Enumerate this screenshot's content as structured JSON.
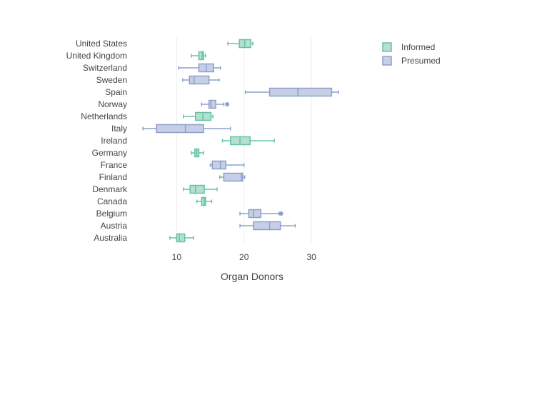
{
  "chart_data": {
    "type": "box",
    "orientation": "horizontal",
    "xlabel": "Organ Donors",
    "ylabel": "",
    "xlim": [
      3.5,
      39
    ],
    "x_ticks": [
      10,
      20,
      30
    ],
    "grid": "vertical",
    "legend_placement": "top-right",
    "categories": [
      "Australia",
      "Austria",
      "Belgium",
      "Canada",
      "Denmark",
      "Finland",
      "France",
      "Germany",
      "Ireland",
      "Italy",
      "Netherlands",
      "Norway",
      "Spain",
      "Sweden",
      "Switzerland",
      "United Kingdom",
      "United States"
    ],
    "series": [
      {
        "name": "Informed",
        "color": "#66c2a5",
        "fill": "#b3e0d2",
        "boxes": [
          {
            "category": "Australia",
            "lower_fence": 9.0,
            "q1": 10.0,
            "median": 10.4,
            "q3": 11.2,
            "upper_fence": 12.5,
            "outliers": []
          },
          {
            "category": "Canada",
            "lower_fence": 13.0,
            "q1": 13.7,
            "median": 14.1,
            "q3": 14.3,
            "upper_fence": 15.2,
            "outliers": []
          },
          {
            "category": "Denmark",
            "lower_fence": 11.0,
            "q1": 12.0,
            "median": 12.8,
            "q3": 14.1,
            "upper_fence": 16.0,
            "outliers": []
          },
          {
            "category": "Germany",
            "lower_fence": 12.2,
            "q1": 12.7,
            "median": 13.0,
            "q3": 13.3,
            "upper_fence": 14.0,
            "outliers": []
          },
          {
            "category": "Ireland",
            "lower_fence": 16.8,
            "q1": 18.0,
            "median": 19.4,
            "q3": 20.9,
            "upper_fence": 24.5,
            "outliers": []
          },
          {
            "category": "Netherlands",
            "lower_fence": 11.0,
            "q1": 12.8,
            "median": 13.9,
            "q3": 15.1,
            "upper_fence": 15.4,
            "outliers": []
          },
          {
            "category": "United Kingdom",
            "lower_fence": 12.2,
            "q1": 13.3,
            "median": 13.8,
            "q3": 14.0,
            "upper_fence": 14.3,
            "outliers": []
          },
          {
            "category": "United States",
            "lower_fence": 17.6,
            "q1": 19.3,
            "median": 20.1,
            "q3": 21.0,
            "upper_fence": 21.3,
            "outliers": []
          }
        ]
      },
      {
        "name": "Presumed",
        "color": "#8da0cb",
        "fill": "#c6cfe5",
        "boxes": [
          {
            "category": "Austria",
            "lower_fence": 19.4,
            "q1": 21.4,
            "median": 23.8,
            "q3": 25.4,
            "upper_fence": 27.6,
            "outliers": []
          },
          {
            "category": "Belgium",
            "lower_fence": 19.4,
            "q1": 20.7,
            "median": 21.4,
            "q3": 22.5,
            "upper_fence": 25.2,
            "outliers": [
              25.5
            ]
          },
          {
            "category": "Finland",
            "lower_fence": 16.4,
            "q1": 17.0,
            "median": 19.6,
            "q3": 19.8,
            "upper_fence": 20.1,
            "outliers": []
          },
          {
            "category": "France",
            "lower_fence": 15.0,
            "q1": 15.3,
            "median": 16.5,
            "q3": 17.3,
            "upper_fence": 20.0,
            "outliers": []
          },
          {
            "category": "Italy",
            "lower_fence": 5.0,
            "q1": 7.0,
            "median": 11.3,
            "q3": 14.0,
            "upper_fence": 18.0,
            "outliers": []
          },
          {
            "category": "Norway",
            "lower_fence": 13.7,
            "q1": 14.8,
            "median": 15.1,
            "q3": 15.8,
            "upper_fence": 17.0,
            "outliers": [
              17.5
            ]
          },
          {
            "category": "Spain",
            "lower_fence": 20.2,
            "q1": 23.8,
            "median": 28.0,
            "q3": 33.0,
            "upper_fence": 34.0,
            "outliers": []
          },
          {
            "category": "Sweden",
            "lower_fence": 10.9,
            "q1": 11.9,
            "median": 12.6,
            "q3": 14.8,
            "upper_fence": 16.3,
            "outliers": []
          },
          {
            "category": "Switzerland",
            "lower_fence": 10.3,
            "q1": 13.3,
            "median": 14.4,
            "q3": 15.5,
            "upper_fence": 16.5,
            "outliers": []
          }
        ]
      }
    ]
  }
}
